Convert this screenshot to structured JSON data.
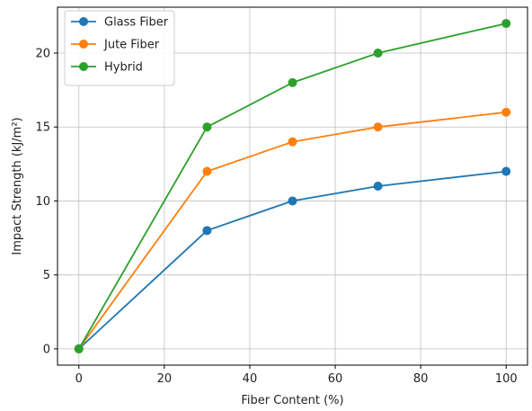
{
  "chart_data": {
    "type": "line",
    "xlabel": "Fiber Content (%)",
    "ylabel": "Impact Strength (kJ/m²)",
    "xlim": [
      -5,
      105
    ],
    "ylim": [
      -1.1,
      23.1
    ],
    "xticks": [
      0,
      20,
      40,
      60,
      80,
      100
    ],
    "yticks": [
      0,
      5,
      10,
      15,
      20
    ],
    "grid": true,
    "legend_position": "top-left",
    "x": [
      0,
      30,
      50,
      70,
      100
    ],
    "series": [
      {
        "name": "Glass Fiber",
        "color": "#1f77b4",
        "values": [
          0,
          8,
          10,
          11,
          12
        ]
      },
      {
        "name": "Jute Fiber",
        "color": "#ff7f0e",
        "values": [
          0,
          12,
          14,
          15,
          16
        ]
      },
      {
        "name": "Hybrid",
        "color": "#2ca02c",
        "values": [
          0,
          15,
          18,
          20,
          22
        ]
      }
    ]
  }
}
